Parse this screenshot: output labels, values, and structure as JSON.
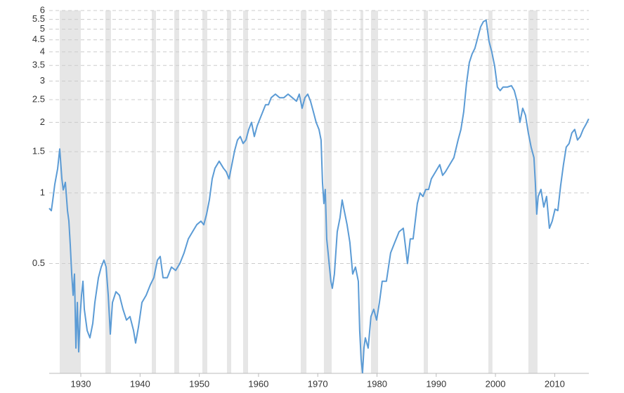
{
  "chart_data": {
    "type": "line",
    "log_scale": true,
    "grid": true,
    "color": "#5b9bd5",
    "band_color": "#e6e6e6",
    "xlim": [
      1924.66,
      2015.77
    ],
    "xticks": [
      1930,
      1940,
      1950,
      1960,
      1970,
      1980,
      1990,
      2000,
      2010
    ],
    "ylim": [
      0.17,
      6
    ],
    "yticks": [
      0.5,
      1,
      1.5,
      2,
      2.5,
      3,
      3.5,
      4,
      4.5,
      5,
      5.5,
      6
    ],
    "recessions": [
      [
        1926.44,
        1930.0
      ],
      [
        1934.15,
        1935.1
      ],
      [
        1941.98,
        1942.69
      ],
      [
        1945.78,
        1946.6
      ],
      [
        1950.52,
        1951.35
      ],
      [
        1954.67,
        1955.39
      ],
      [
        1957.4,
        1958.23
      ],
      [
        1967.13,
        1968.09
      ],
      [
        1971.04,
        1972.35
      ],
      [
        1977.21,
        1977.69
      ],
      [
        1978.99,
        1980.18
      ],
      [
        1987.89,
        1988.6
      ],
      [
        1998.8,
        1999.5
      ],
      [
        2005.56,
        2007.1
      ]
    ],
    "x": [
      1924.66,
      1925.02,
      1925.26,
      1925.61,
      1926.09,
      1926.44,
      1926.8,
      1927.03,
      1927.39,
      1927.75,
      1927.98,
      1928.22,
      1928.46,
      1928.7,
      1928.93,
      1929.17,
      1929.41,
      1929.64,
      1929.88,
      1930.12,
      1930.36,
      1930.59,
      1931.07,
      1931.54,
      1932.02,
      1932.37,
      1932.97,
      1933.44,
      1933.91,
      1934.27,
      1934.63,
      1934.98,
      1935.34,
      1935.93,
      1936.52,
      1937.12,
      1937.71,
      1938.3,
      1938.9,
      1939.25,
      1939.73,
      1940.32,
      1941.03,
      1941.74,
      1942.33,
      1942.93,
      1943.4,
      1943.88,
      1944.59,
      1945.3,
      1946.01,
      1946.72,
      1947.43,
      1948.15,
      1948.86,
      1949.57,
      1950.28,
      1950.76,
      1951.23,
      1951.7,
      1952.18,
      1952.65,
      1953.36,
      1954.08,
      1954.55,
      1955.02,
      1955.5,
      1955.97,
      1956.45,
      1956.92,
      1957.4,
      1957.87,
      1958.35,
      1958.82,
      1959.29,
      1959.77,
      1960.24,
      1960.72,
      1961.19,
      1961.67,
      1962.14,
      1962.85,
      1963.56,
      1964.28,
      1964.99,
      1965.7,
      1966.41,
      1966.88,
      1967.36,
      1967.83,
      1968.31,
      1968.78,
      1969.26,
      1969.73,
      1970.21,
      1970.56,
      1970.8,
      1971.04,
      1971.27,
      1971.51,
      1971.75,
      1971.98,
      1972.22,
      1972.46,
      1972.81,
      1973.29,
      1973.76,
      1974.12,
      1974.47,
      1974.95,
      1975.42,
      1975.9,
      1976.37,
      1976.85,
      1977.08,
      1977.32,
      1977.56,
      1977.8,
      1978.03,
      1978.51,
      1978.98,
      1979.45,
      1979.93,
      1980.41,
      1980.88,
      1981.59,
      1982.3,
      1983.01,
      1983.73,
      1984.44,
      1985.15,
      1985.62,
      1986.1,
      1986.81,
      1987.28,
      1987.76,
      1988.23,
      1988.71,
      1989.18,
      1989.89,
      1990.6,
      1991.08,
      1991.56,
      1992.27,
      1992.98,
      1993.69,
      1994.17,
      1994.64,
      1995.11,
      1995.59,
      1996.06,
      1996.53,
      1997.01,
      1997.48,
      1997.96,
      1998.43,
      1998.91,
      1999.38,
      1999.86,
      2000.33,
      2000.8,
      2001.28,
      2001.99,
      2002.7,
      2003.18,
      2003.65,
      2004.13,
      2004.6,
      2005.07,
      2005.55,
      2006.02,
      2006.5,
      2006.73,
      2006.97,
      2007.21,
      2007.68,
      2008.16,
      2008.63,
      2009.11,
      2009.58,
      2010.06,
      2010.53,
      2011.0,
      2011.48,
      2011.95,
      2012.43,
      2012.9,
      2013.38,
      2013.85,
      2014.32,
      2014.8,
      2015.27,
      2015.74
    ],
    "values": [
      0.86,
      0.84,
      0.93,
      1.09,
      1.27,
      1.54,
      1.15,
      1.03,
      1.11,
      0.84,
      0.76,
      0.6,
      0.451,
      0.366,
      0.451,
      0.218,
      0.341,
      0.21,
      0.297,
      0.366,
      0.42,
      0.319,
      0.259,
      0.241,
      0.278,
      0.341,
      0.435,
      0.483,
      0.517,
      0.483,
      0.366,
      0.25,
      0.341,
      0.379,
      0.366,
      0.319,
      0.287,
      0.297,
      0.259,
      0.229,
      0.268,
      0.341,
      0.366,
      0.406,
      0.435,
      0.517,
      0.536,
      0.435,
      0.435,
      0.483,
      0.467,
      0.5,
      0.555,
      0.637,
      0.683,
      0.732,
      0.758,
      0.732,
      0.812,
      0.933,
      1.149,
      1.275,
      1.366,
      1.275,
      1.231,
      1.149,
      1.32,
      1.516,
      1.682,
      1.741,
      1.625,
      1.682,
      1.866,
      2.0,
      1.741,
      1.932,
      2.071,
      2.219,
      2.378,
      2.378,
      2.549,
      2.639,
      2.549,
      2.549,
      2.639,
      2.549,
      2.462,
      2.639,
      2.297,
      2.549,
      2.639,
      2.462,
      2.219,
      2.0,
      1.866,
      1.682,
      1.11,
      0.901,
      1.035,
      0.637,
      0.555,
      0.483,
      0.42,
      0.392,
      0.451,
      0.683,
      0.785,
      0.933,
      0.841,
      0.732,
      0.616,
      0.451,
      0.483,
      0.42,
      0.259,
      0.196,
      0.171,
      0.218,
      0.241,
      0.218,
      0.297,
      0.319,
      0.287,
      0.341,
      0.42,
      0.42,
      0.555,
      0.616,
      0.683,
      0.707,
      0.5,
      0.637,
      0.637,
      0.901,
      1.0,
      0.966,
      1.035,
      1.035,
      1.149,
      1.231,
      1.32,
      1.189,
      1.231,
      1.32,
      1.414,
      1.682,
      1.866,
      2.219,
      2.928,
      3.605,
      3.918,
      4.141,
      4.595,
      5.1,
      5.38,
      5.46,
      4.438,
      4.0,
      3.482,
      2.828,
      2.732,
      2.828,
      2.828,
      2.868,
      2.732,
      2.462,
      2.0,
      2.297,
      2.144,
      1.803,
      1.569,
      1.414,
      1.11,
      0.812,
      0.966,
      1.035,
      0.871,
      0.966,
      0.707,
      0.758,
      0.853,
      0.841,
      1.072,
      1.32,
      1.569,
      1.625,
      1.803,
      1.866,
      1.682,
      1.741,
      1.866,
      1.959,
      2.071
    ]
  }
}
